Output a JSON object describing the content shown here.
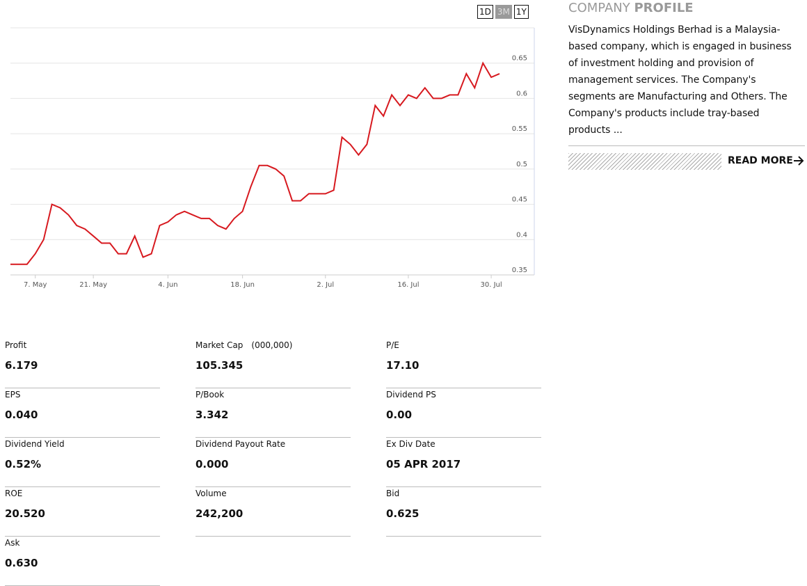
{
  "chart_data": {
    "type": "line",
    "categories": [
      null,
      null,
      null,
      "7. May",
      null,
      null,
      null,
      null,
      null,
      null,
      "21. May",
      null,
      null,
      null,
      null,
      null,
      null,
      null,
      null,
      "4. Jun",
      null,
      null,
      null,
      null,
      null,
      null,
      null,
      null,
      "18. Jun",
      null,
      null,
      null,
      null,
      null,
      null,
      null,
      null,
      null,
      "2. Jul",
      null,
      null,
      null,
      null,
      null,
      null,
      null,
      null,
      null,
      "16. Jul",
      null,
      null,
      null,
      null,
      null,
      null,
      null,
      null,
      null,
      "30. Jul",
      null
    ],
    "values": [
      0.365,
      0.365,
      0.365,
      0.38,
      0.4,
      0.45,
      0.445,
      0.435,
      0.42,
      0.415,
      0.405,
      0.395,
      0.395,
      0.38,
      0.38,
      0.405,
      0.375,
      0.38,
      0.42,
      0.425,
      0.435,
      0.44,
      0.435,
      0.43,
      0.43,
      0.42,
      0.415,
      0.43,
      0.44,
      0.475,
      0.505,
      0.505,
      0.5,
      0.49,
      0.455,
      0.455,
      0.465,
      0.465,
      0.465,
      0.47,
      0.545,
      0.535,
      0.52,
      0.535,
      0.59,
      0.575,
      0.605,
      0.59,
      0.605,
      0.6,
      0.615,
      0.6,
      0.6,
      0.605,
      0.605,
      0.635,
      0.615,
      0.65,
      0.63,
      0.635
    ],
    "color": "#d7191f",
    "ylim": [
      0.35,
      0.7
    ],
    "yticks": [
      0.35,
      0.4,
      0.45,
      0.5,
      0.55,
      0.6,
      0.65
    ],
    "grid": true
  },
  "range_buttons": [
    {
      "label": "1D",
      "active": false
    },
    {
      "label": "3M",
      "active": true
    },
    {
      "label": "1Y",
      "active": false
    }
  ],
  "profile": {
    "title_light": "COMPANY",
    "title_bold": "PROFILE",
    "description": "VisDynamics Holdings Berhad is a Malaysia-based company, which is engaged in business of investment holding and provision of management services. The Company's segments are Manufacturing and Others. The Company's products include tray-based products ...",
    "read_more": "READ MORE"
  },
  "stats": [
    {
      "label": "Profit",
      "value": "6.179"
    },
    {
      "label": "Market Cap",
      "unit": "(000,000)",
      "value": "105.345"
    },
    {
      "label": "P/E",
      "value": "17.10"
    },
    {
      "label": "EPS",
      "value": "0.040"
    },
    {
      "label": "P/Book",
      "value": "3.342"
    },
    {
      "label": "Dividend PS",
      "value": "0.00"
    },
    {
      "label": "Dividend Yield",
      "value": "0.52%"
    },
    {
      "label": "Dividend Payout Rate",
      "value": "0.000"
    },
    {
      "label": "Ex Div Date",
      "value": "05 APR 2017"
    },
    {
      "label": "ROE",
      "value": "20.520"
    },
    {
      "label": "Volume",
      "value": "242,200"
    },
    {
      "label": "Bid",
      "value": "0.625"
    },
    {
      "label": "Ask",
      "value": "0.630"
    }
  ]
}
